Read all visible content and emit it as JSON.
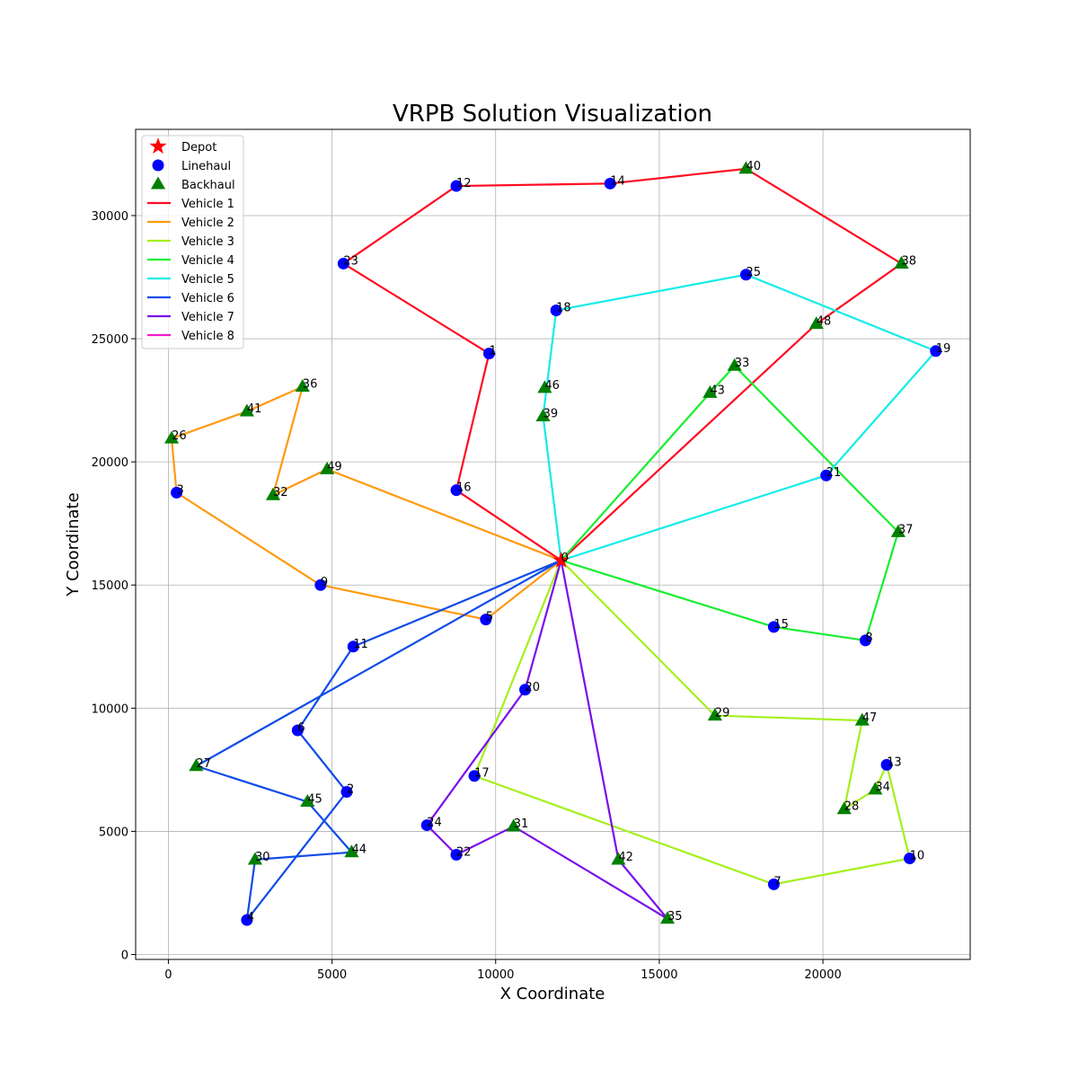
{
  "chart_data": {
    "type": "scatter",
    "title": "VRPB Solution Visualization",
    "xlabel": "X Coordinate",
    "ylabel": "Y Coordinate",
    "xlim": [
      -1000,
      24500
    ],
    "ylim": [
      -200,
      33500
    ],
    "xticks": [
      0,
      5000,
      10000,
      15000,
      20000
    ],
    "yticks": [
      0,
      5000,
      10000,
      15000,
      20000,
      25000,
      30000
    ],
    "grid": true,
    "legend_position": "top-left",
    "legend": [
      "Depot",
      "Linehaul",
      "Backhaul",
      "Vehicle 1",
      "Vehicle 2",
      "Vehicle 3",
      "Vehicle 4",
      "Vehicle 5",
      "Vehicle 6",
      "Vehicle 7",
      "Vehicle 8"
    ],
    "colors": {
      "depot": "#ff0000",
      "linehaul": "#0000ff",
      "backhaul": "#008000"
    },
    "nodes": [
      {
        "id": "0",
        "x": 12000,
        "y": 16000,
        "type": "depot"
      },
      {
        "id": "1",
        "x": 9800,
        "y": 24400,
        "type": "linehaul"
      },
      {
        "id": "2",
        "x": 5450,
        "y": 6600,
        "type": "linehaul"
      },
      {
        "id": "3",
        "x": 250,
        "y": 18750,
        "type": "linehaul"
      },
      {
        "id": "4",
        "x": 2400,
        "y": 1400,
        "type": "linehaul"
      },
      {
        "id": "5",
        "x": 9700,
        "y": 13600,
        "type": "linehaul"
      },
      {
        "id": "6",
        "x": 3950,
        "y": 9100,
        "type": "linehaul"
      },
      {
        "id": "7",
        "x": 18500,
        "y": 2850,
        "type": "linehaul"
      },
      {
        "id": "8",
        "x": 21300,
        "y": 12750,
        "type": "linehaul"
      },
      {
        "id": "9",
        "x": 4650,
        "y": 15000,
        "type": "linehaul"
      },
      {
        "id": "10",
        "x": 22650,
        "y": 3900,
        "type": "linehaul"
      },
      {
        "id": "11",
        "x": 5650,
        "y": 12500,
        "type": "linehaul"
      },
      {
        "id": "12",
        "x": 8800,
        "y": 31200,
        "type": "linehaul"
      },
      {
        "id": "13",
        "x": 21950,
        "y": 7700,
        "type": "linehaul"
      },
      {
        "id": "14",
        "x": 13500,
        "y": 31300,
        "type": "linehaul"
      },
      {
        "id": "15",
        "x": 18500,
        "y": 13300,
        "type": "linehaul"
      },
      {
        "id": "16",
        "x": 8800,
        "y": 18850,
        "type": "linehaul"
      },
      {
        "id": "17",
        "x": 9350,
        "y": 7250,
        "type": "linehaul"
      },
      {
        "id": "18",
        "x": 11850,
        "y": 26150,
        "type": "linehaul"
      },
      {
        "id": "19",
        "x": 23450,
        "y": 24500,
        "type": "linehaul"
      },
      {
        "id": "20",
        "x": 10900,
        "y": 10750,
        "type": "linehaul"
      },
      {
        "id": "21",
        "x": 20100,
        "y": 19450,
        "type": "linehaul"
      },
      {
        "id": "22",
        "x": 8800,
        "y": 4050,
        "type": "linehaul"
      },
      {
        "id": "23",
        "x": 5350,
        "y": 28050,
        "type": "linehaul"
      },
      {
        "id": "24",
        "x": 7900,
        "y": 5250,
        "type": "linehaul"
      },
      {
        "id": "25",
        "x": 17650,
        "y": 27600,
        "type": "linehaul"
      },
      {
        "id": "26",
        "x": 100,
        "y": 20950,
        "type": "backhaul"
      },
      {
        "id": "27",
        "x": 850,
        "y": 7650,
        "type": "backhaul"
      },
      {
        "id": "28",
        "x": 20650,
        "y": 5900,
        "type": "backhaul"
      },
      {
        "id": "29",
        "x": 16700,
        "y": 9700,
        "type": "backhaul"
      },
      {
        "id": "30",
        "x": 2650,
        "y": 3850,
        "type": "backhaul"
      },
      {
        "id": "31",
        "x": 10550,
        "y": 5200,
        "type": "backhaul"
      },
      {
        "id": "32",
        "x": 3200,
        "y": 18650,
        "type": "backhaul"
      },
      {
        "id": "33",
        "x": 17300,
        "y": 23900,
        "type": "backhaul"
      },
      {
        "id": "34",
        "x": 21600,
        "y": 6700,
        "type": "backhaul"
      },
      {
        "id": "35",
        "x": 15250,
        "y": 1450,
        "type": "backhaul"
      },
      {
        "id": "36",
        "x": 4100,
        "y": 23050,
        "type": "backhaul"
      },
      {
        "id": "37",
        "x": 22300,
        "y": 17150,
        "type": "backhaul"
      },
      {
        "id": "38",
        "x": 22400,
        "y": 28050,
        "type": "backhaul"
      },
      {
        "id": "39",
        "x": 11450,
        "y": 21850,
        "type": "backhaul"
      },
      {
        "id": "40",
        "x": 17650,
        "y": 31900,
        "type": "backhaul"
      },
      {
        "id": "41",
        "x": 2400,
        "y": 22050,
        "type": "backhaul"
      },
      {
        "id": "42",
        "x": 13750,
        "y": 3850,
        "type": "backhaul"
      },
      {
        "id": "43",
        "x": 16550,
        "y": 22800,
        "type": "backhaul"
      },
      {
        "id": "44",
        "x": 5600,
        "y": 4150,
        "type": "backhaul"
      },
      {
        "id": "45",
        "x": 4250,
        "y": 6200,
        "type": "backhaul"
      },
      {
        "id": "46",
        "x": 11500,
        "y": 23000,
        "type": "backhaul"
      },
      {
        "id": "47",
        "x": 21200,
        "y": 9500,
        "type": "backhaul"
      },
      {
        "id": "48",
        "x": 19800,
        "y": 25600,
        "type": "backhaul"
      },
      {
        "id": "49",
        "x": 4850,
        "y": 19700,
        "type": "backhaul"
      }
    ],
    "series": [
      {
        "name": "Vehicle 1",
        "color": "#ff0b22",
        "route": [
          "0",
          "16",
          "1",
          "23",
          "12",
          "14",
          "40",
          "38",
          "48",
          "0"
        ]
      },
      {
        "name": "Vehicle 2",
        "color": "#ff9a10",
        "route": [
          "0",
          "5",
          "9",
          "3",
          "26",
          "41",
          "36",
          "32",
          "49",
          "0"
        ]
      },
      {
        "name": "Vehicle 3",
        "color": "#a4f01c",
        "route": [
          "0",
          "17",
          "7",
          "10",
          "13",
          "34",
          "28",
          "47",
          "29",
          "0"
        ]
      },
      {
        "name": "Vehicle 4",
        "color": "#17ee2f",
        "route": [
          "0",
          "15",
          "8",
          "37",
          "33",
          "43",
          "0"
        ]
      },
      {
        "name": "Vehicle 5",
        "color": "#14ece8",
        "route": [
          "0",
          "21",
          "19",
          "25",
          "18",
          "39",
          "0"
        ]
      },
      {
        "name": "Vehicle 6",
        "color": "#0e4be8",
        "route": [
          "0",
          "27",
          "45",
          "44",
          "30",
          "4",
          "2",
          "6",
          "11",
          "0"
        ]
      },
      {
        "name": "Vehicle 7",
        "color": "#7a0ee8",
        "route": [
          "0",
          "20",
          "24",
          "22",
          "31",
          "35",
          "42",
          "0"
        ]
      },
      {
        "name": "Vehicle 8",
        "color": "#f01ccb",
        "route": []
      }
    ]
  }
}
